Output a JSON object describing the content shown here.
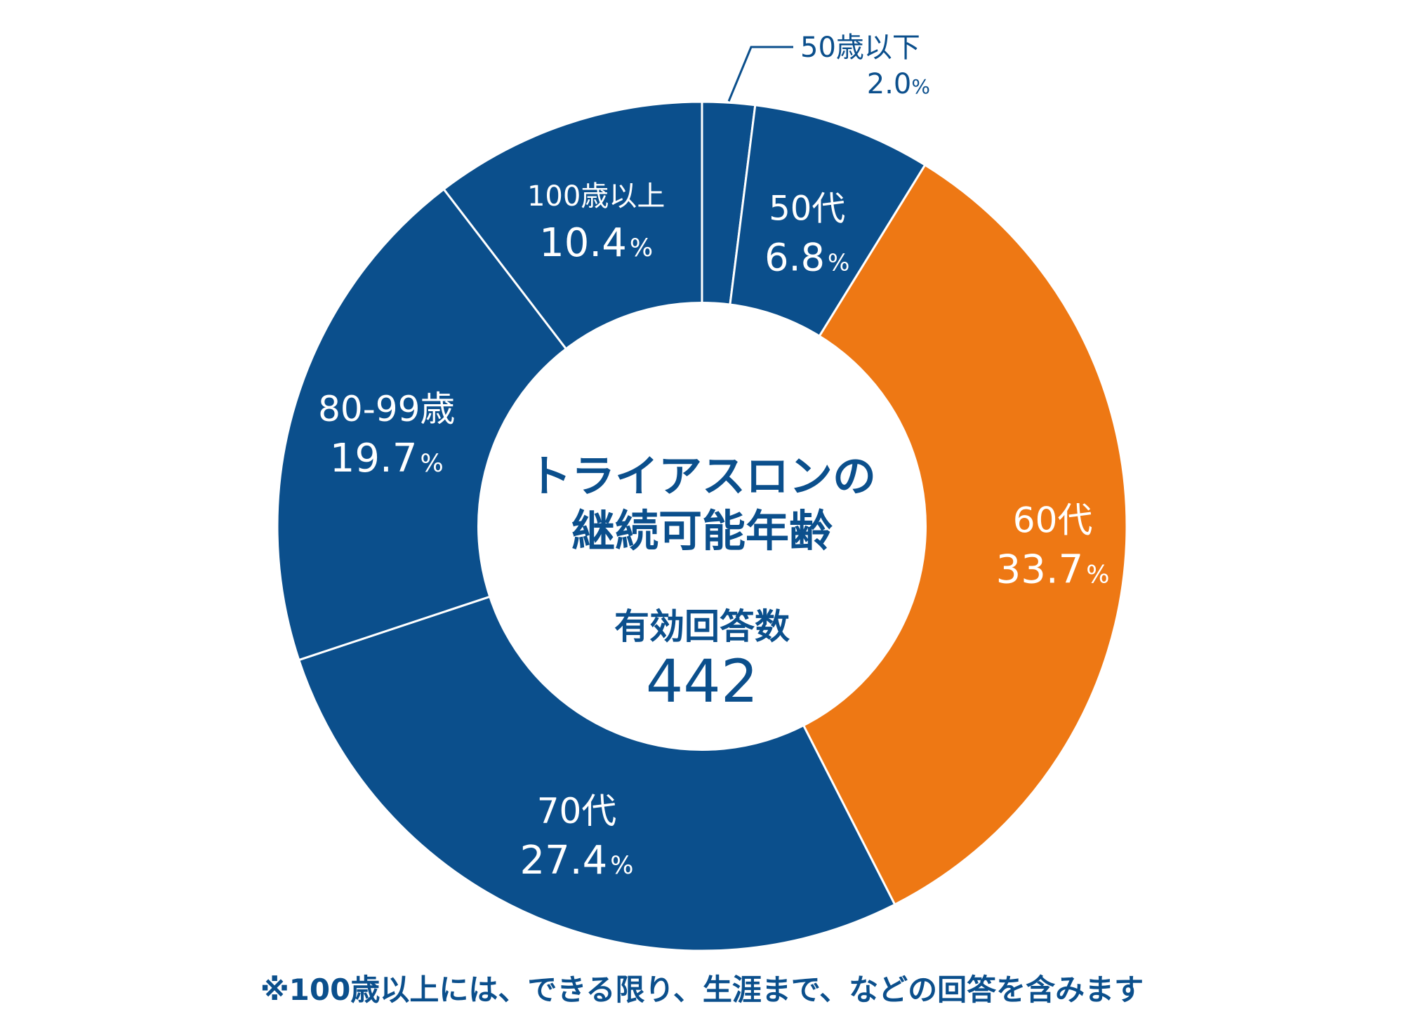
{
  "chart_data": {
    "type": "pie",
    "donut": true,
    "center": {
      "title_line1": "トライアスロンの",
      "title_line2": "継続可能年齢",
      "subtitle": "有効回答数",
      "value": "442"
    },
    "slices": [
      {
        "name": "50歳以下",
        "value": 2.0,
        "label_value": "2.0",
        "color": "#0b4f8c",
        "text_color": "#0b4f8c"
      },
      {
        "name": "50代",
        "value": 6.8,
        "label_value": "6.8",
        "color": "#0b4f8c",
        "text_color": "#ffffff"
      },
      {
        "name": "60代",
        "value": 33.7,
        "label_value": "33.7",
        "color": "#ee7814",
        "text_color": "#ffffff"
      },
      {
        "name": "70代",
        "value": 27.4,
        "label_value": "27.4",
        "color": "#0b4f8c",
        "text_color": "#ffffff"
      },
      {
        "name": "80-99歳",
        "value": 19.7,
        "label_value": "19.7",
        "color": "#0b4f8c",
        "text_color": "#ffffff"
      },
      {
        "name": "100歳以上",
        "value": 10.4,
        "label_value": "10.4",
        "color": "#0b4f8c",
        "text_color": "#ffffff"
      }
    ],
    "percent_sign": "%",
    "footnote": "※100歳以上には、できる限り、生涯まで、などの回答を含みます"
  },
  "colors": {
    "primary": "#0b4f8c",
    "accent": "#ee7814",
    "background": "#ffffff"
  }
}
